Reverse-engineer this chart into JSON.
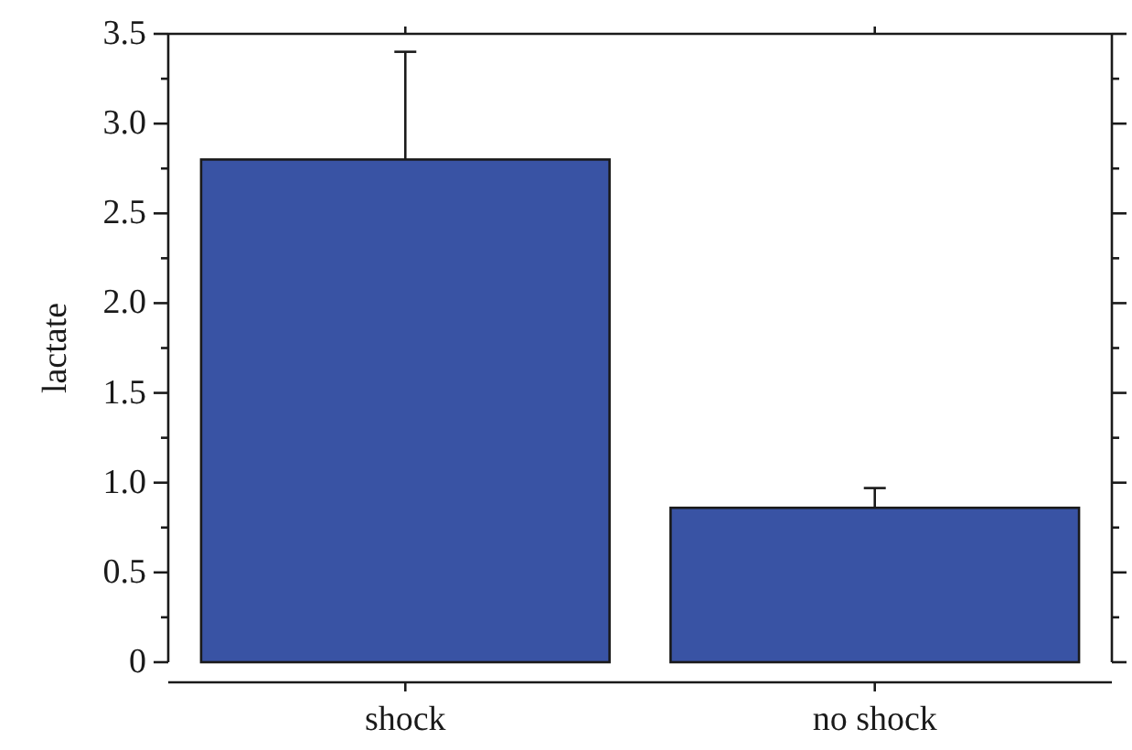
{
  "chart_data": {
    "type": "bar",
    "ylabel": "lactate",
    "categories": [
      "shock",
      "no shock"
    ],
    "values": [
      2.8,
      0.86
    ],
    "errors": [
      [
        2.8,
        3.4
      ],
      [
        0.86,
        0.97
      ]
    ],
    "color": "#3953a4",
    "ylim": [
      0,
      3.5
    ],
    "yticks": [
      0,
      {
        "value": 0.25,
        "label": null
      },
      0.5,
      {
        "value": 0.75,
        "label": null
      },
      "1.0",
      {
        "value": 1.25,
        "label": null
      },
      1.5,
      {
        "value": 1.75,
        "label": null
      },
      "2.0",
      {
        "value": 2.25,
        "label": null
      },
      2.5,
      {
        "value": 2.75,
        "label": null
      },
      "3.0",
      {
        "value": 3.25,
        "label": null
      },
      3.5
    ],
    "grid": false
  }
}
